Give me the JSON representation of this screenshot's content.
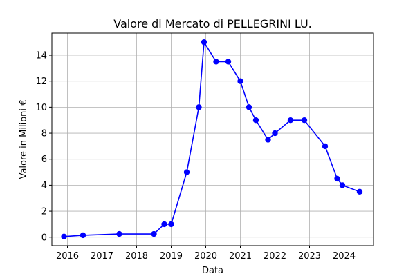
{
  "chart_data": {
    "type": "line",
    "title": "Valore di Mercato di PELLEGRINI LU.",
    "xlabel": "Data",
    "ylabel": "Valore in Milioni €",
    "xlim": [
      2015.55,
      2024.85
    ],
    "ylim": [
      -0.65,
      15.7
    ],
    "x_ticks": [
      2016,
      2017,
      2018,
      2019,
      2020,
      2021,
      2022,
      2023,
      2024
    ],
    "y_ticks": [
      0,
      2,
      4,
      6,
      8,
      10,
      12,
      14
    ],
    "grid": true,
    "series": [
      {
        "color": "#0000ff",
        "marker": "circle",
        "points": [
          {
            "x": 2015.9,
            "y": 0.05
          },
          {
            "x": 2016.45,
            "y": 0.15
          },
          {
            "x": 2017.5,
            "y": 0.25
          },
          {
            "x": 2018.5,
            "y": 0.25
          },
          {
            "x": 2018.8,
            "y": 1.0
          },
          {
            "x": 2019.0,
            "y": 1.0
          },
          {
            "x": 2019.45,
            "y": 5.0
          },
          {
            "x": 2019.8,
            "y": 10.0
          },
          {
            "x": 2019.95,
            "y": 15.0
          },
          {
            "x": 2020.3,
            "y": 13.5
          },
          {
            "x": 2020.65,
            "y": 13.5
          },
          {
            "x": 2021.0,
            "y": 12.0
          },
          {
            "x": 2021.25,
            "y": 10.0
          },
          {
            "x": 2021.45,
            "y": 9.0
          },
          {
            "x": 2021.8,
            "y": 7.5
          },
          {
            "x": 2022.0,
            "y": 8.0
          },
          {
            "x": 2022.45,
            "y": 9.0
          },
          {
            "x": 2022.85,
            "y": 9.0
          },
          {
            "x": 2023.45,
            "y": 7.0
          },
          {
            "x": 2023.8,
            "y": 4.5
          },
          {
            "x": 2023.95,
            "y": 4.0
          },
          {
            "x": 2024.45,
            "y": 3.5
          }
        ]
      }
    ]
  }
}
